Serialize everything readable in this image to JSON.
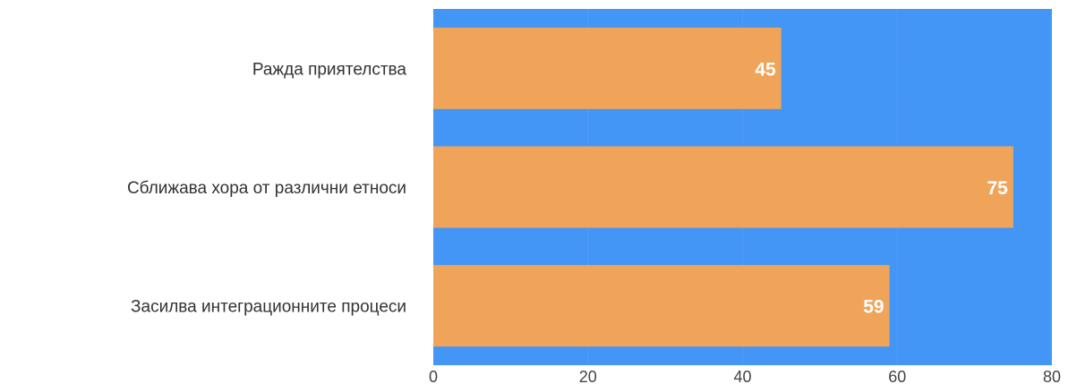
{
  "chart_data": {
    "type": "bar",
    "orientation": "horizontal",
    "categories": [
      "Ражда приятелства",
      "Сближава хора от различни етноси",
      "Засилва интеграционните процеси"
    ],
    "values": [
      45,
      75,
      59
    ],
    "data_labels": [
      "45",
      "75",
      "59"
    ],
    "xlim": [
      0,
      80
    ],
    "x_ticks": [
      0,
      20,
      40,
      60,
      80
    ],
    "x_tick_labels": [
      "0",
      "20",
      "40",
      "60",
      "80"
    ],
    "grid": true,
    "legend": "none",
    "colors": {
      "plot_background": "#4396f6",
      "bar": "#f0a459",
      "data_label": "#ffffff",
      "gridline": "#6aa9f2"
    }
  }
}
